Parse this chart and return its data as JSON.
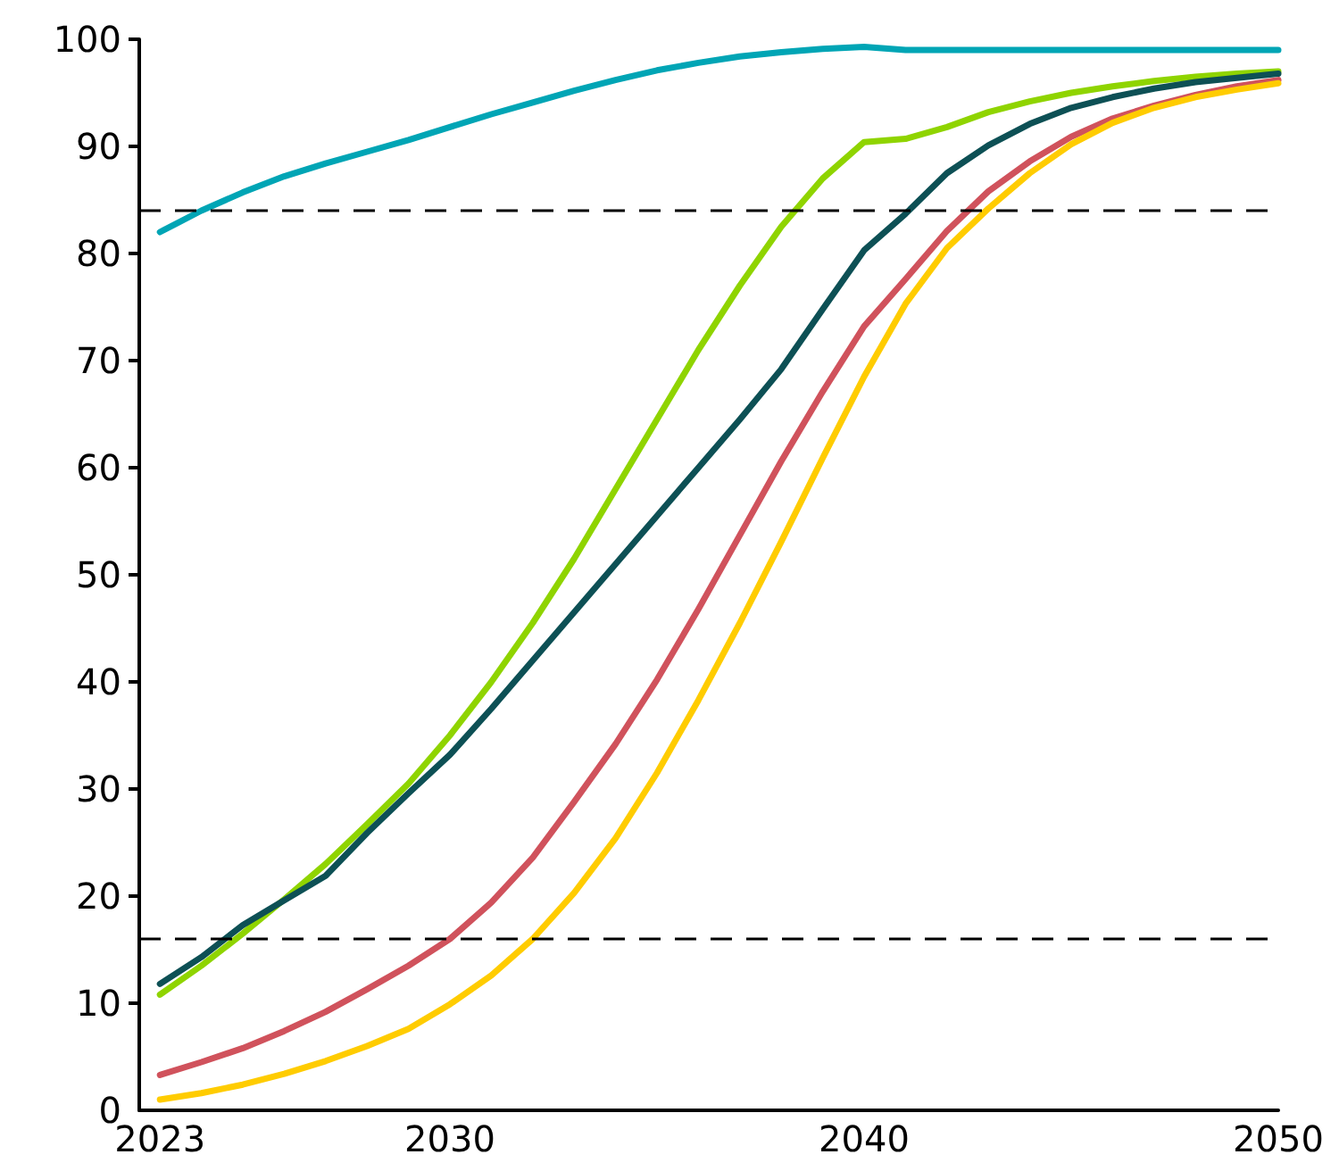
{
  "chart_data": {
    "type": "line",
    "x": [
      2023,
      2024,
      2025,
      2026,
      2027,
      2028,
      2029,
      2030,
      2031,
      2032,
      2033,
      2034,
      2035,
      2036,
      2037,
      2038,
      2039,
      2040,
      2041,
      2042,
      2043,
      2044,
      2045,
      2046,
      2047,
      2048,
      2049,
      2050
    ],
    "series": [
      {
        "color": "#00a5b5",
        "values": [
          82,
          84,
          85.7,
          87.2,
          88.4,
          89.5,
          90.6,
          91.8,
          93,
          94.1,
          95.2,
          96.2,
          97.1,
          97.8,
          98.4,
          98.8,
          99.1,
          99.3,
          99,
          99,
          99,
          99,
          99,
          99,
          99,
          99,
          99,
          99
        ]
      },
      {
        "color": "#8fd400",
        "values": [
          10.8,
          13.5,
          16.5,
          19.7,
          23,
          26.7,
          30.5,
          35,
          40,
          45.5,
          51.5,
          58,
          64.5,
          71,
          77,
          82.5,
          87,
          90.4,
          90.7,
          91.8,
          93.2,
          94.2,
          95,
          95.6,
          96.1,
          96.5,
          96.8,
          97
        ]
      },
      {
        "color": "#0d5055",
        "values": [
          11.8,
          14.3,
          17.3,
          19.6,
          21.9,
          25.9,
          29.6,
          33.2,
          37.5,
          42,
          46.5,
          51,
          55.5,
          60,
          64.5,
          69.2,
          74.8,
          80.3,
          83.7,
          87.5,
          90.1,
          92.1,
          93.6,
          94.6,
          95.4,
          96,
          96.4,
          96.8
        ]
      },
      {
        "color": "#d0525c",
        "values": [
          3.3,
          4.5,
          5.8,
          7.4,
          9.2,
          11.3,
          13.5,
          16,
          19.4,
          23.6,
          28.8,
          34.2,
          40.2,
          46.8,
          53.7,
          60.6,
          67.1,
          73.2,
          77.6,
          82.1,
          85.8,
          88.6,
          90.9,
          92.6,
          93.8,
          94.8,
          95.6,
          96.2
        ]
      },
      {
        "color": "#ffcc00",
        "values": [
          1,
          1.6,
          2.4,
          3.4,
          4.6,
          6,
          7.6,
          9.9,
          12.6,
          16,
          20.3,
          25.4,
          31.5,
          38.3,
          45.5,
          53.1,
          60.9,
          68.5,
          75.3,
          80.5,
          84.2,
          87.5,
          90.2,
          92.2,
          93.6,
          94.6,
          95.3,
          95.9
        ]
      }
    ],
    "xlim": [
      2022.5,
      2050
    ],
    "xticks": [
      2023,
      2030,
      2040,
      2050
    ],
    "ylim": [
      0,
      100
    ],
    "yticks": [
      0,
      10,
      20,
      30,
      40,
      50,
      60,
      70,
      80,
      90,
      100
    ],
    "ref_lines": [
      {
        "axis": "y",
        "value": 84,
        "color": "#000000",
        "line_style": "dashed"
      },
      {
        "axis": "y",
        "value": 16,
        "color": "#000000",
        "line_style": "dashed"
      }
    ],
    "grid": false,
    "marker": "none",
    "line_style": "solid"
  }
}
